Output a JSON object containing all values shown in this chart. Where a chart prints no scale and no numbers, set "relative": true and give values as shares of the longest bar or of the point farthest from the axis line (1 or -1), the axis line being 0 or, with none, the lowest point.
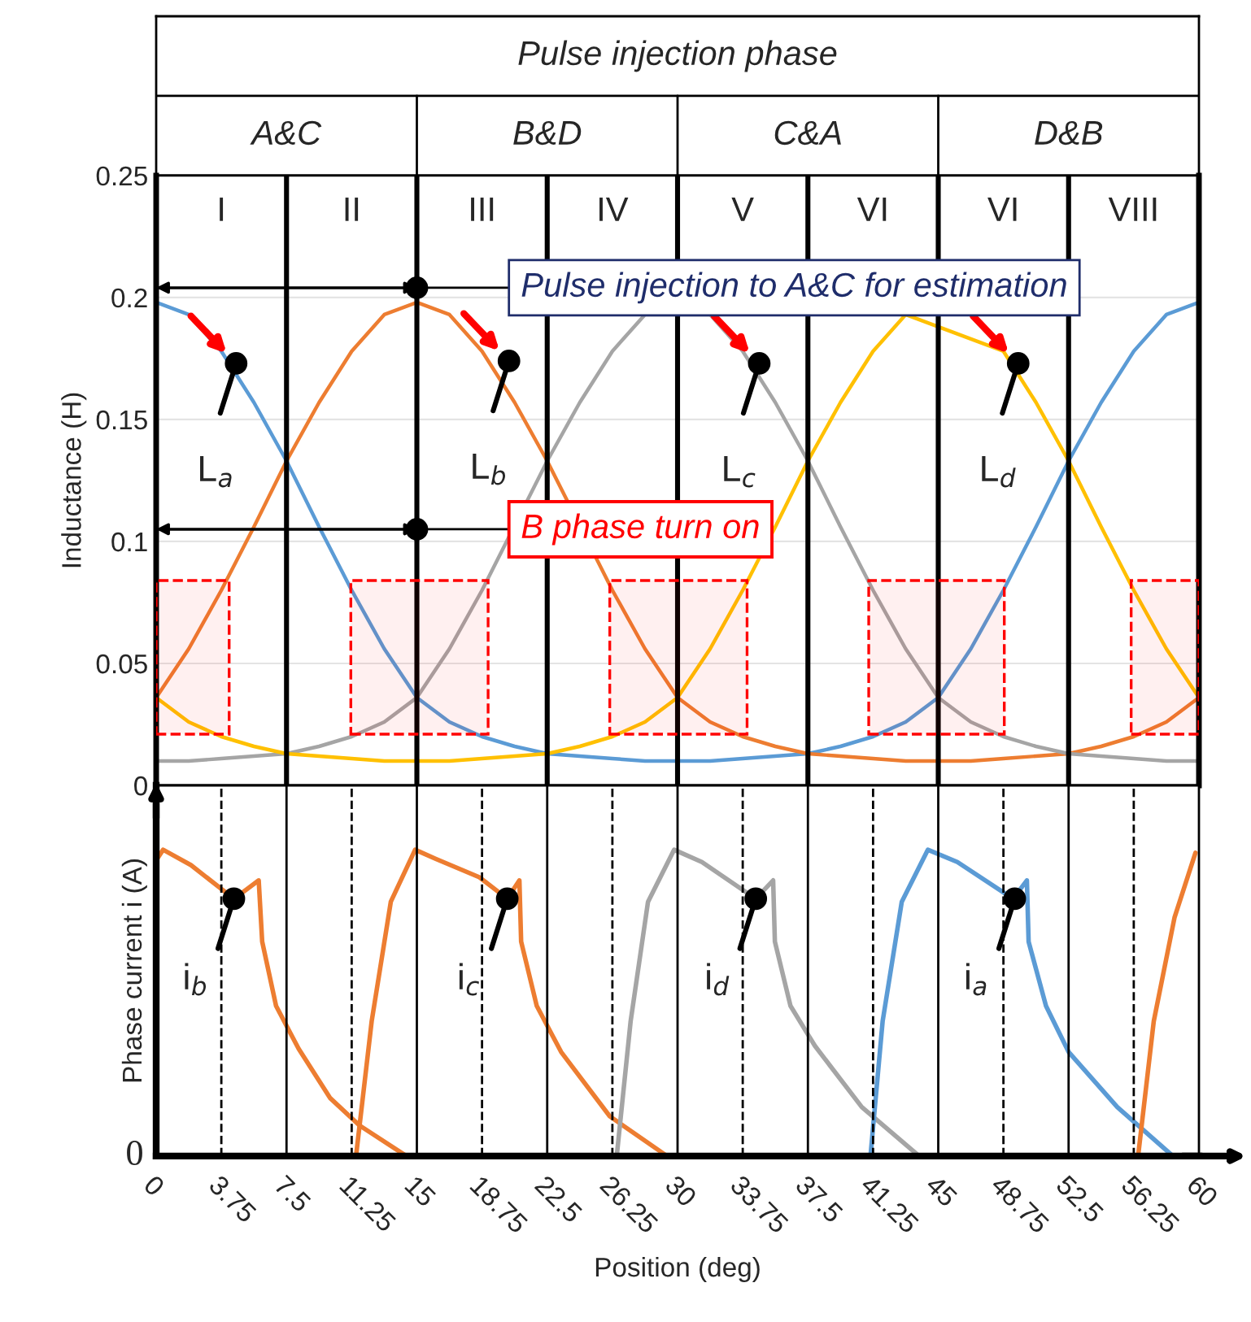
{
  "chart_data": [
    {
      "type": "other",
      "annotations": [
        "Pulse injection phase",
        "A&C",
        "B&D",
        "C&A",
        "D&B"
      ]
    },
    {
      "type": "line",
      "ylabel": "Inductance (H)",
      "x": [
        0,
        1.875,
        3.75,
        5.625,
        7.5,
        9.375,
        11.25,
        13.125,
        15,
        16.875,
        18.75,
        20.625,
        22.5,
        24.375,
        26.25,
        28.125,
        30,
        31.875,
        33.75,
        35.625,
        37.5,
        39.375,
        41.25,
        43.125,
        45,
        46.875,
        48.75,
        50.625,
        52.5,
        54.375,
        56.25,
        58.125,
        60
      ],
      "series": [
        {
          "color": "#5b9bd5",
          "values": [
            0.198,
            0.193,
            0.178,
            0.157,
            0.133,
            0.106,
            0.08,
            0.056,
            0.036,
            0.026,
            0.02,
            0.016,
            0.013,
            0.012,
            0.011,
            0.01,
            0.01,
            0.01,
            0.011,
            0.012,
            0.013,
            0.016,
            0.02,
            0.026,
            0.036,
            0.056,
            0.08,
            0.106,
            0.133,
            0.157,
            0.178,
            0.193,
            0.198
          ]
        },
        {
          "color": "#ed7d31",
          "values": [
            0.036,
            0.056,
            0.08,
            0.106,
            0.133,
            0.157,
            0.178,
            0.193,
            0.198,
            0.193,
            0.178,
            0.157,
            0.133,
            null,
            0.08,
            0.056,
            0.036,
            0.026,
            0.02,
            0.016,
            0.013,
            0.012,
            0.011,
            0.01,
            0.01,
            0.01,
            0.011,
            0.012,
            0.013,
            0.016,
            0.02,
            0.026,
            0.036
          ]
        },
        {
          "color": "#a5a5a5",
          "values": [
            0.01,
            0.01,
            0.011,
            0.012,
            0.013,
            0.016,
            0.02,
            0.026,
            0.036,
            0.056,
            0.08,
            null,
            0.133,
            0.157,
            0.178,
            0.193,
            null,
            0.193,
            0.178,
            0.157,
            0.133,
            0.106,
            0.08,
            0.056,
            0.036,
            0.026,
            0.02,
            0.016,
            0.013,
            0.012,
            0.011,
            0.01,
            0.01
          ]
        },
        {
          "color": "#ffc000",
          "values": [
            0.036,
            0.026,
            0.02,
            0.016,
            0.013,
            0.012,
            0.011,
            0.01,
            0.01,
            0.01,
            0.011,
            0.012,
            0.013,
            0.016,
            0.02,
            0.026,
            0.036,
            0.056,
            0.08,
            0.106,
            0.133,
            0.157,
            0.178,
            0.193,
            null,
            null,
            0.178,
            0.157,
            0.133,
            0.106,
            0.08,
            0.056,
            0.036
          ]
        }
      ],
      "xlim": [
        0,
        60
      ],
      "ylim": [
        0,
        0.25
      ],
      "xticks": [
        0,
        3.75,
        7.5,
        11.25,
        15,
        18.75,
        22.5,
        26.25,
        30,
        33.75,
        37.5,
        41.25,
        45,
        48.75,
        52.5,
        56.25,
        60
      ],
      "yticks": [
        0,
        0.05,
        0.1,
        0.15,
        0.2,
        0.25
      ],
      "tick_labels": "y",
      "grid": "y",
      "line_style": "solid",
      "ref_lines": [
        {
          "axis": "x",
          "value": 7.5
        },
        {
          "axis": "x",
          "value": 15
        },
        {
          "axis": "x",
          "value": 22.5
        },
        {
          "axis": "x",
          "value": 30
        },
        {
          "axis": "x",
          "value": 37.5
        },
        {
          "axis": "x",
          "value": 45
        },
        {
          "axis": "x",
          "value": 52.5
        }
      ],
      "bands": [
        {
          "axis": "x",
          "from": 0,
          "to": 4.2,
          "color": "#ff0000"
        },
        {
          "axis": "x",
          "from": 11.2,
          "to": 19.1,
          "color": "#ff0000"
        },
        {
          "axis": "x",
          "from": 26.1,
          "to": 34.0,
          "color": "#ff0000"
        },
        {
          "axis": "x",
          "from": 41.0,
          "to": 48.8,
          "color": "#ff0000"
        },
        {
          "axis": "x",
          "from": 56.1,
          "to": 60,
          "color": "#ff0000"
        }
      ],
      "annotations": [
        "I",
        "II",
        "III",
        "IV",
        "V",
        "VI",
        "VI",
        "VIII",
        {
          "text": "Pulse injection to A&C for estimation",
          "x": 15,
          "y": 0.204
        },
        {
          "text": "B phase turn on",
          "x": 15,
          "y": 0.105
        },
        {
          "text": "L$_{a}$",
          "x": 4.6,
          "y": 0.173
        },
        {
          "text": "L$_{b}$",
          "x": 20.3,
          "y": 0.174
        },
        {
          "text": "L$_{c}$",
          "x": 34.7,
          "y": 0.173
        },
        {
          "text": "L$_{d}$",
          "x": 49.6,
          "y": 0.173
        }
      ]
    },
    {
      "type": "line",
      "relative": true,
      "xlabel": "Position (deg)",
      "ylabel": "Phase current i (A)",
      "series": [
        {
          "color": "#ed7d31",
          "x": [
            0.05,
            0.4,
            2.0,
            4.47,
            5.2,
            5.9,
            6.1,
            6.9,
            8.2,
            10.0,
            11.7,
            14.4
          ],
          "values": [
            0.97,
            1.0,
            0.95,
            0.84,
            0.87,
            0.9,
            0.7,
            0.49,
            0.35,
            0.19,
            0.1,
            0
          ]
        },
        {
          "color": "#ed7d31",
          "x": [
            11.5,
            12.4,
            13.5,
            14.9,
            16.1,
            18.6,
            20.2,
            20.9,
            21.0,
            21.9,
            23.3,
            26.1,
            29.4
          ],
          "values": [
            0,
            0.44,
            0.83,
            1.0,
            0.97,
            0.91,
            0.84,
            0.9,
            0.7,
            0.49,
            0.34,
            0.13,
            0
          ]
        },
        {
          "color": "#a5a5a5",
          "x": [
            26.5,
            27.3,
            28.3,
            29.8,
            31.4,
            34.5,
            35.5,
            35.6,
            36.5,
            37.9,
            40.6,
            43.9
          ],
          "values": [
            0,
            0.44,
            0.83,
            1.0,
            0.96,
            0.84,
            0.9,
            0.7,
            0.49,
            0.36,
            0.16,
            0
          ]
        },
        {
          "color": "#5b9bd5",
          "x": [
            41.1,
            41.8,
            42.9,
            44.4,
            46.1,
            49.3,
            50.1,
            50.2,
            51.2,
            52.5,
            55.3,
            58.5
          ],
          "values": [
            0,
            0.44,
            0.83,
            1.0,
            0.96,
            0.84,
            0.9,
            0.7,
            0.49,
            0.34,
            0.16,
            0
          ]
        },
        {
          "color": "#ed7d31",
          "x": [
            56.5,
            57.4,
            58.6,
            59.8
          ],
          "values": [
            0,
            0.44,
            0.78,
            0.99
          ]
        }
      ],
      "xlim": [
        0,
        60
      ],
      "xticks": [
        0,
        3.75,
        7.5,
        11.25,
        15,
        18.75,
        22.5,
        26.25,
        30,
        33.75,
        37.5,
        41.25,
        45,
        48.75,
        52.5,
        56.25,
        60
      ],
      "tick_labels": "x",
      "line_style": "solid",
      "ref_lines": [
        {
          "axis": "x",
          "value": 3.75,
          "line_style": "dashed"
        },
        {
          "axis": "x",
          "value": 7.5
        },
        {
          "axis": "x",
          "value": 11.25,
          "line_style": "dashed"
        },
        {
          "axis": "x",
          "value": 15
        },
        {
          "axis": "x",
          "value": 18.75,
          "line_style": "dashed"
        },
        {
          "axis": "x",
          "value": 22.5
        },
        {
          "axis": "x",
          "value": 26.25,
          "line_style": "dashed"
        },
        {
          "axis": "x",
          "value": 30
        },
        {
          "axis": "x",
          "value": 33.75,
          "line_style": "dashed"
        },
        {
          "axis": "x",
          "value": 37.5
        },
        {
          "axis": "x",
          "value": 41.25,
          "line_style": "dashed"
        },
        {
          "axis": "x",
          "value": 45
        },
        {
          "axis": "x",
          "value": 48.75,
          "line_style": "dashed"
        },
        {
          "axis": "x",
          "value": 52.5
        },
        {
          "axis": "x",
          "value": 56.25,
          "line_style": "dashed"
        }
      ],
      "annotations": [
        "0",
        {
          "text": "i$_{b}$",
          "x": 4.47,
          "y": 0.84
        },
        {
          "text": "i$_{c}$",
          "x": 20.2,
          "y": 0.84
        },
        {
          "text": "i$_{d}$",
          "x": 34.5,
          "y": 0.84
        },
        {
          "text": "i$_{a}$",
          "x": 49.4,
          "y": 0.84
        }
      ]
    }
  ]
}
